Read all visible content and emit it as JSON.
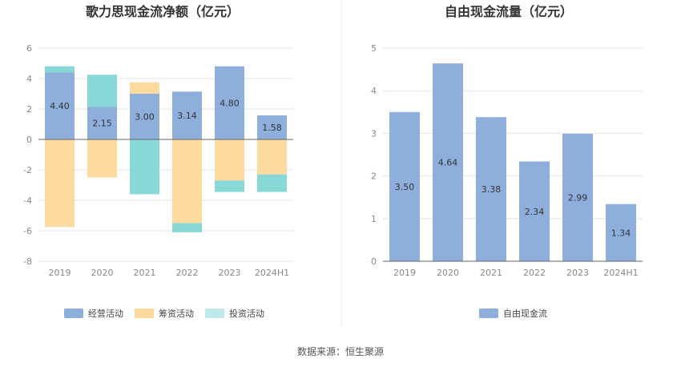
{
  "source_text": "数据来源：恒生聚源",
  "chart_data": [
    {
      "id": "cashflow",
      "type": "bar",
      "stacked": true,
      "title": "歌力思现金流净额（亿元）",
      "categories": [
        "2019",
        "2020",
        "2021",
        "2022",
        "2023",
        "2024H1"
      ],
      "ylim": [
        -8,
        6
      ],
      "yticks": [
        6,
        4,
        2,
        0,
        -2,
        -4,
        -6,
        -8
      ],
      "grid": true,
      "legend_position": "bottom",
      "series": [
        {
          "name": "经营活动",
          "color": "#8eaedc",
          "values": [
            4.4,
            2.15,
            3.0,
            3.14,
            4.8,
            1.58
          ],
          "labels": [
            "4.40",
            "2.15",
            "3.00",
            "3.14",
            "4.80",
            "1.58"
          ]
        },
        {
          "name": "筹资活动",
          "color": "#fddba0",
          "values": [
            -5.75,
            -2.5,
            0.75,
            -5.5,
            -2.7,
            -2.3
          ]
        },
        {
          "name": "投资活动",
          "color": "#88d8d8",
          "values": [
            0.4,
            2.1,
            -3.6,
            -0.6,
            -0.75,
            -1.15
          ]
        }
      ]
    },
    {
      "id": "freecashflow",
      "type": "bar",
      "title": "自由现金流量（亿元）",
      "categories": [
        "2019",
        "2020",
        "2021",
        "2022",
        "2023",
        "2024H1"
      ],
      "ylim": [
        0,
        5
      ],
      "yticks": [
        5,
        4,
        3,
        2,
        1,
        0
      ],
      "grid": true,
      "legend_position": "bottom",
      "series": [
        {
          "name": "自由现金流",
          "color": "#8eaedc",
          "values": [
            3.5,
            4.64,
            3.38,
            2.34,
            2.99,
            1.34
          ],
          "labels": [
            "3.50",
            "4.64",
            "3.38",
            "2.34",
            "2.99",
            "1.34"
          ]
        }
      ]
    }
  ],
  "legend_colors": {
    "investing_legend": "#c0e8ea"
  }
}
